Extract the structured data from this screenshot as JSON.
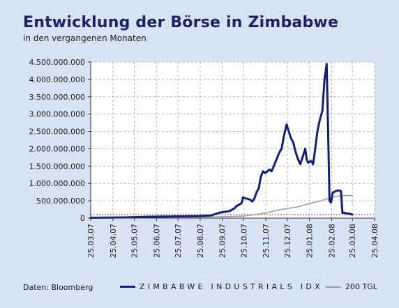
{
  "header": {
    "title": "Entwicklung der Börse in Zimbabwe",
    "subtitle": "in den vergangenen Monaten"
  },
  "footer": {
    "source": "Daten: Bloomberg"
  },
  "colors": {
    "background": "#d7e3f2",
    "plot_background": "#ffffff",
    "series_index": "#10207a",
    "series_tgl": "#9a9a9a",
    "reference_line": "#b03a2e",
    "title": "#1a2566"
  },
  "chart_data": {
    "type": "line",
    "title": "Entwicklung der Börse in Zimbabwe",
    "subtitle": "in den vergangenen Monaten",
    "ylim": [
      0,
      4500000000
    ],
    "y_ticks": [
      0,
      500000000,
      1000000000,
      1500000000,
      2000000000,
      2500000000,
      3000000000,
      3500000000,
      4000000000,
      4500000000
    ],
    "y_tick_labels": [
      "0",
      "500.000.000",
      "1.000.000.000",
      "1.500.000.000",
      "2.000.000.000",
      "2.500.000.000",
      "3.000.000.000",
      "3.500.000.000",
      "4.000.000.000",
      "4.500.000.000"
    ],
    "x_ticks": [
      "2007-03-25",
      "2007-04-25",
      "2007-05-25",
      "2007-06-25",
      "2007-07-25",
      "2007-08-25",
      "2007-09-25",
      "2007-10-25",
      "2007-11-25",
      "2007-12-25",
      "2008-01-25",
      "2008-02-25",
      "2008-03-25",
      "2008-04-25"
    ],
    "x_tick_labels": [
      "25.03.07",
      "25.04.07",
      "25.05.07",
      "25.06.07",
      "25.07.07",
      "25.08.07",
      "25.09.07",
      "25.10.07",
      "25.11.07",
      "25.12.07",
      "25.01.08",
      "25.02.08",
      "25.03.08",
      "25.04.08"
    ],
    "xlim": [
      "2007-03-25",
      "2008-04-25"
    ],
    "grid": true,
    "legend": "bottom",
    "reference_line": {
      "y": 100000000,
      "style": "dashed"
    },
    "series": [
      {
        "name": "ZIMBABWE INDUSTRIALS IDX",
        "x": [
          "2007-03-25",
          "2007-05-10",
          "2007-06-15",
          "2007-07-25",
          "2007-08-25",
          "2007-09-10",
          "2007-09-20",
          "2007-09-28",
          "2007-10-05",
          "2007-10-12",
          "2007-10-15",
          "2007-10-18",
          "2007-10-22",
          "2007-10-24",
          "2007-10-27",
          "2007-10-30",
          "2007-11-03",
          "2007-11-06",
          "2007-11-09",
          "2007-11-12",
          "2007-11-15",
          "2007-11-18",
          "2007-11-21",
          "2007-11-24",
          "2007-11-27",
          "2007-11-30",
          "2007-12-03",
          "2007-12-07",
          "2007-12-10",
          "2007-12-14",
          "2007-12-17",
          "2007-12-20",
          "2007-12-24",
          "2007-12-27",
          "2007-12-30",
          "2008-01-02",
          "2008-01-05",
          "2008-01-08",
          "2008-01-12",
          "2008-01-16",
          "2008-01-19",
          "2008-01-21",
          "2008-01-23",
          "2008-01-27",
          "2008-01-30",
          "2008-02-02",
          "2008-02-05",
          "2008-02-08",
          "2008-02-12",
          "2008-02-15",
          "2008-02-18",
          "2008-02-20",
          "2008-02-22",
          "2008-02-24",
          "2008-02-25",
          "2008-02-26",
          "2008-02-27",
          "2008-02-28",
          "2008-03-02",
          "2008-03-06",
          "2008-03-09",
          "2008-03-11",
          "2008-03-12",
          "2008-03-13",
          "2008-03-15",
          "2008-03-20",
          "2008-03-25"
        ],
        "values": [
          10000000,
          20000000,
          40000000,
          50000000,
          60000000,
          80000000,
          150000000,
          180000000,
          200000000,
          280000000,
          350000000,
          380000000,
          430000000,
          600000000,
          570000000,
          560000000,
          530000000,
          480000000,
          570000000,
          750000000,
          850000000,
          1200000000,
          1350000000,
          1300000000,
          1350000000,
          1400000000,
          1350000000,
          1550000000,
          1700000000,
          1900000000,
          2000000000,
          2350000000,
          2700000000,
          2500000000,
          2300000000,
          2200000000,
          1950000000,
          1750000000,
          1550000000,
          1800000000,
          2000000000,
          1700000000,
          1600000000,
          1650000000,
          1550000000,
          2000000000,
          2500000000,
          2800000000,
          3100000000,
          4000000000,
          4450000000,
          2500000000,
          500000000,
          450000000,
          550000000,
          700000000,
          750000000,
          750000000,
          780000000,
          800000000,
          780000000,
          150000000,
          150000000,
          160000000,
          140000000,
          130000000,
          100000000
        ]
      },
      {
        "name": "200 TGL",
        "x": [
          "2007-03-25",
          "2007-06-25",
          "2007-08-25",
          "2007-09-25",
          "2007-10-25",
          "2007-11-10",
          "2007-11-25",
          "2007-12-10",
          "2007-12-25",
          "2008-01-10",
          "2008-01-25",
          "2008-02-10",
          "2008-02-25",
          "2008-03-10",
          "2008-03-25"
        ],
        "values": [
          20000000,
          25000000,
          30000000,
          40000000,
          60000000,
          100000000,
          150000000,
          220000000,
          280000000,
          330000000,
          420000000,
          500000000,
          600000000,
          650000000,
          650000000
        ]
      }
    ]
  }
}
